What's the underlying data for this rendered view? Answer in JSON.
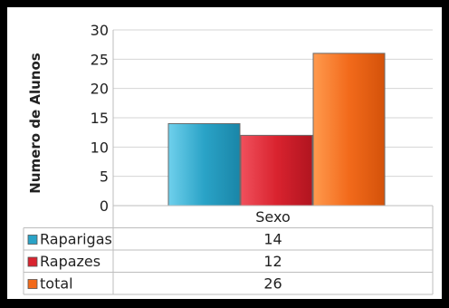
{
  "chart_data": {
    "type": "bar",
    "categories": [
      "Sexo"
    ],
    "series": [
      {
        "name": "Raparigas",
        "values": [
          14
        ],
        "color": "#2aa3c7"
      },
      {
        "name": "Rapazes",
        "values": [
          12
        ],
        "color": "#d9232f"
      },
      {
        "name": "total",
        "values": [
          26
        ],
        "color": "#f26a1b"
      }
    ],
    "ylabel": "Numero de Alunos",
    "xlabel": "",
    "ylim": [
      0,
      30
    ],
    "yticks": [
      0,
      5,
      10,
      15,
      20,
      25,
      30
    ],
    "grid": true,
    "legend": "data-table",
    "data_table": true
  }
}
